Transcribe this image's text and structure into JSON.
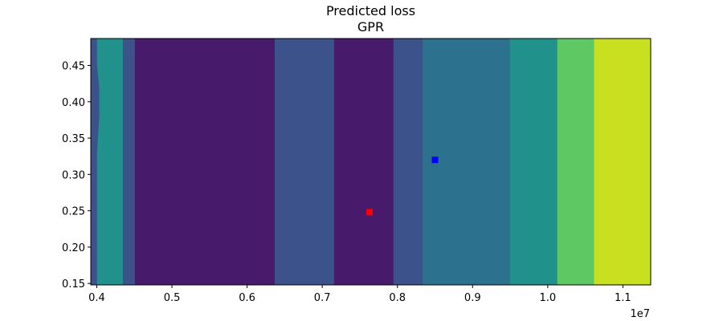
{
  "chart_data": {
    "type": "contour",
    "title": "Predicted loss",
    "subtitle": "GPR",
    "xlabel": "",
    "ylabel": "",
    "x_offset_text": "1e7",
    "xlim": [
      3.92,
      11.37
    ],
    "ylim": [
      0.148,
      0.487
    ],
    "x_ticks": [
      0.4,
      0.5,
      0.6,
      0.7,
      0.8,
      0.9,
      1.0,
      1.1
    ],
    "x_tick_labels": [
      "0.4",
      "0.5",
      "0.6",
      "0.7",
      "0.8",
      "0.9",
      "1.0",
      "1.1"
    ],
    "y_ticks": [
      0.15,
      0.2,
      0.25,
      0.3,
      0.35,
      0.4,
      0.45
    ],
    "y_tick_labels": [
      "0.15",
      "0.20",
      "0.25",
      "0.30",
      "0.35",
      "0.40",
      "0.45"
    ],
    "colormap": [
      "#440154",
      "#481a6c",
      "#3b528b",
      "#2c728e",
      "#21918c",
      "#28ae80",
      "#5ec962",
      "#c8e020"
    ],
    "regions": [
      {
        "level": 4,
        "color": "#21918c",
        "points": [
          [
            3.92,
            0.487
          ],
          [
            4.35,
            0.487
          ],
          [
            4.35,
            0.148
          ],
          [
            3.92,
            0.148
          ]
        ]
      },
      {
        "level": 2,
        "color": "#3b528b",
        "points": [
          [
            3.92,
            0.487
          ],
          [
            4.0,
            0.487
          ],
          [
            4.0,
            0.45
          ],
          [
            4.03,
            0.42
          ],
          [
            4.03,
            0.38
          ],
          [
            4.0,
            0.33
          ],
          [
            4.0,
            0.148
          ],
          [
            3.92,
            0.148
          ]
        ]
      },
      {
        "level": 2,
        "color": "#3b528b",
        "points": [
          [
            4.35,
            0.487
          ],
          [
            4.35,
            0.148
          ],
          [
            4.51,
            0.148
          ],
          [
            4.51,
            0.487
          ]
        ]
      },
      {
        "level": 1,
        "color": "#481a6c",
        "points": [
          [
            4.51,
            0.487
          ],
          [
            6.37,
            0.487
          ],
          [
            6.37,
            0.148
          ],
          [
            4.51,
            0.148
          ]
        ]
      },
      {
        "level": 2,
        "color": "#3b528b",
        "points": [
          [
            6.37,
            0.487
          ],
          [
            7.16,
            0.487
          ],
          [
            7.16,
            0.148
          ],
          [
            6.37,
            0.148
          ]
        ]
      },
      {
        "level": 1,
        "color": "#481a6c",
        "points": [
          [
            7.16,
            0.487
          ],
          [
            7.95,
            0.487
          ],
          [
            7.95,
            0.148
          ],
          [
            7.16,
            0.148
          ]
        ]
      },
      {
        "level": 2,
        "color": "#3b528b",
        "points": [
          [
            7.95,
            0.487
          ],
          [
            8.34,
            0.487
          ],
          [
            8.34,
            0.148
          ],
          [
            7.95,
            0.148
          ]
        ]
      },
      {
        "level": 3,
        "color": "#2c728e",
        "points": [
          [
            8.34,
            0.487
          ],
          [
            9.5,
            0.487
          ],
          [
            9.5,
            0.148
          ],
          [
            8.34,
            0.148
          ]
        ]
      },
      {
        "level": 4,
        "color": "#21918c",
        "points": [
          [
            9.5,
            0.487
          ],
          [
            10.13,
            0.487
          ],
          [
            10.13,
            0.148
          ],
          [
            9.5,
            0.148
          ]
        ]
      },
      {
        "level": 6,
        "color": "#5ec962",
        "points": [
          [
            10.13,
            0.487
          ],
          [
            10.62,
            0.487
          ],
          [
            10.62,
            0.148
          ],
          [
            10.13,
            0.148
          ]
        ]
      },
      {
        "level": 7,
        "color": "#c8e020",
        "points": [
          [
            10.62,
            0.487
          ],
          [
            11.37,
            0.487
          ],
          [
            11.37,
            0.148
          ],
          [
            10.62,
            0.148
          ]
        ]
      }
    ],
    "markers": [
      {
        "x": 7.63,
        "y": 0.248,
        "color": "#ff0000",
        "shape": "square"
      },
      {
        "x": 8.5,
        "y": 0.32,
        "color": "#0000ff",
        "shape": "square"
      }
    ]
  }
}
